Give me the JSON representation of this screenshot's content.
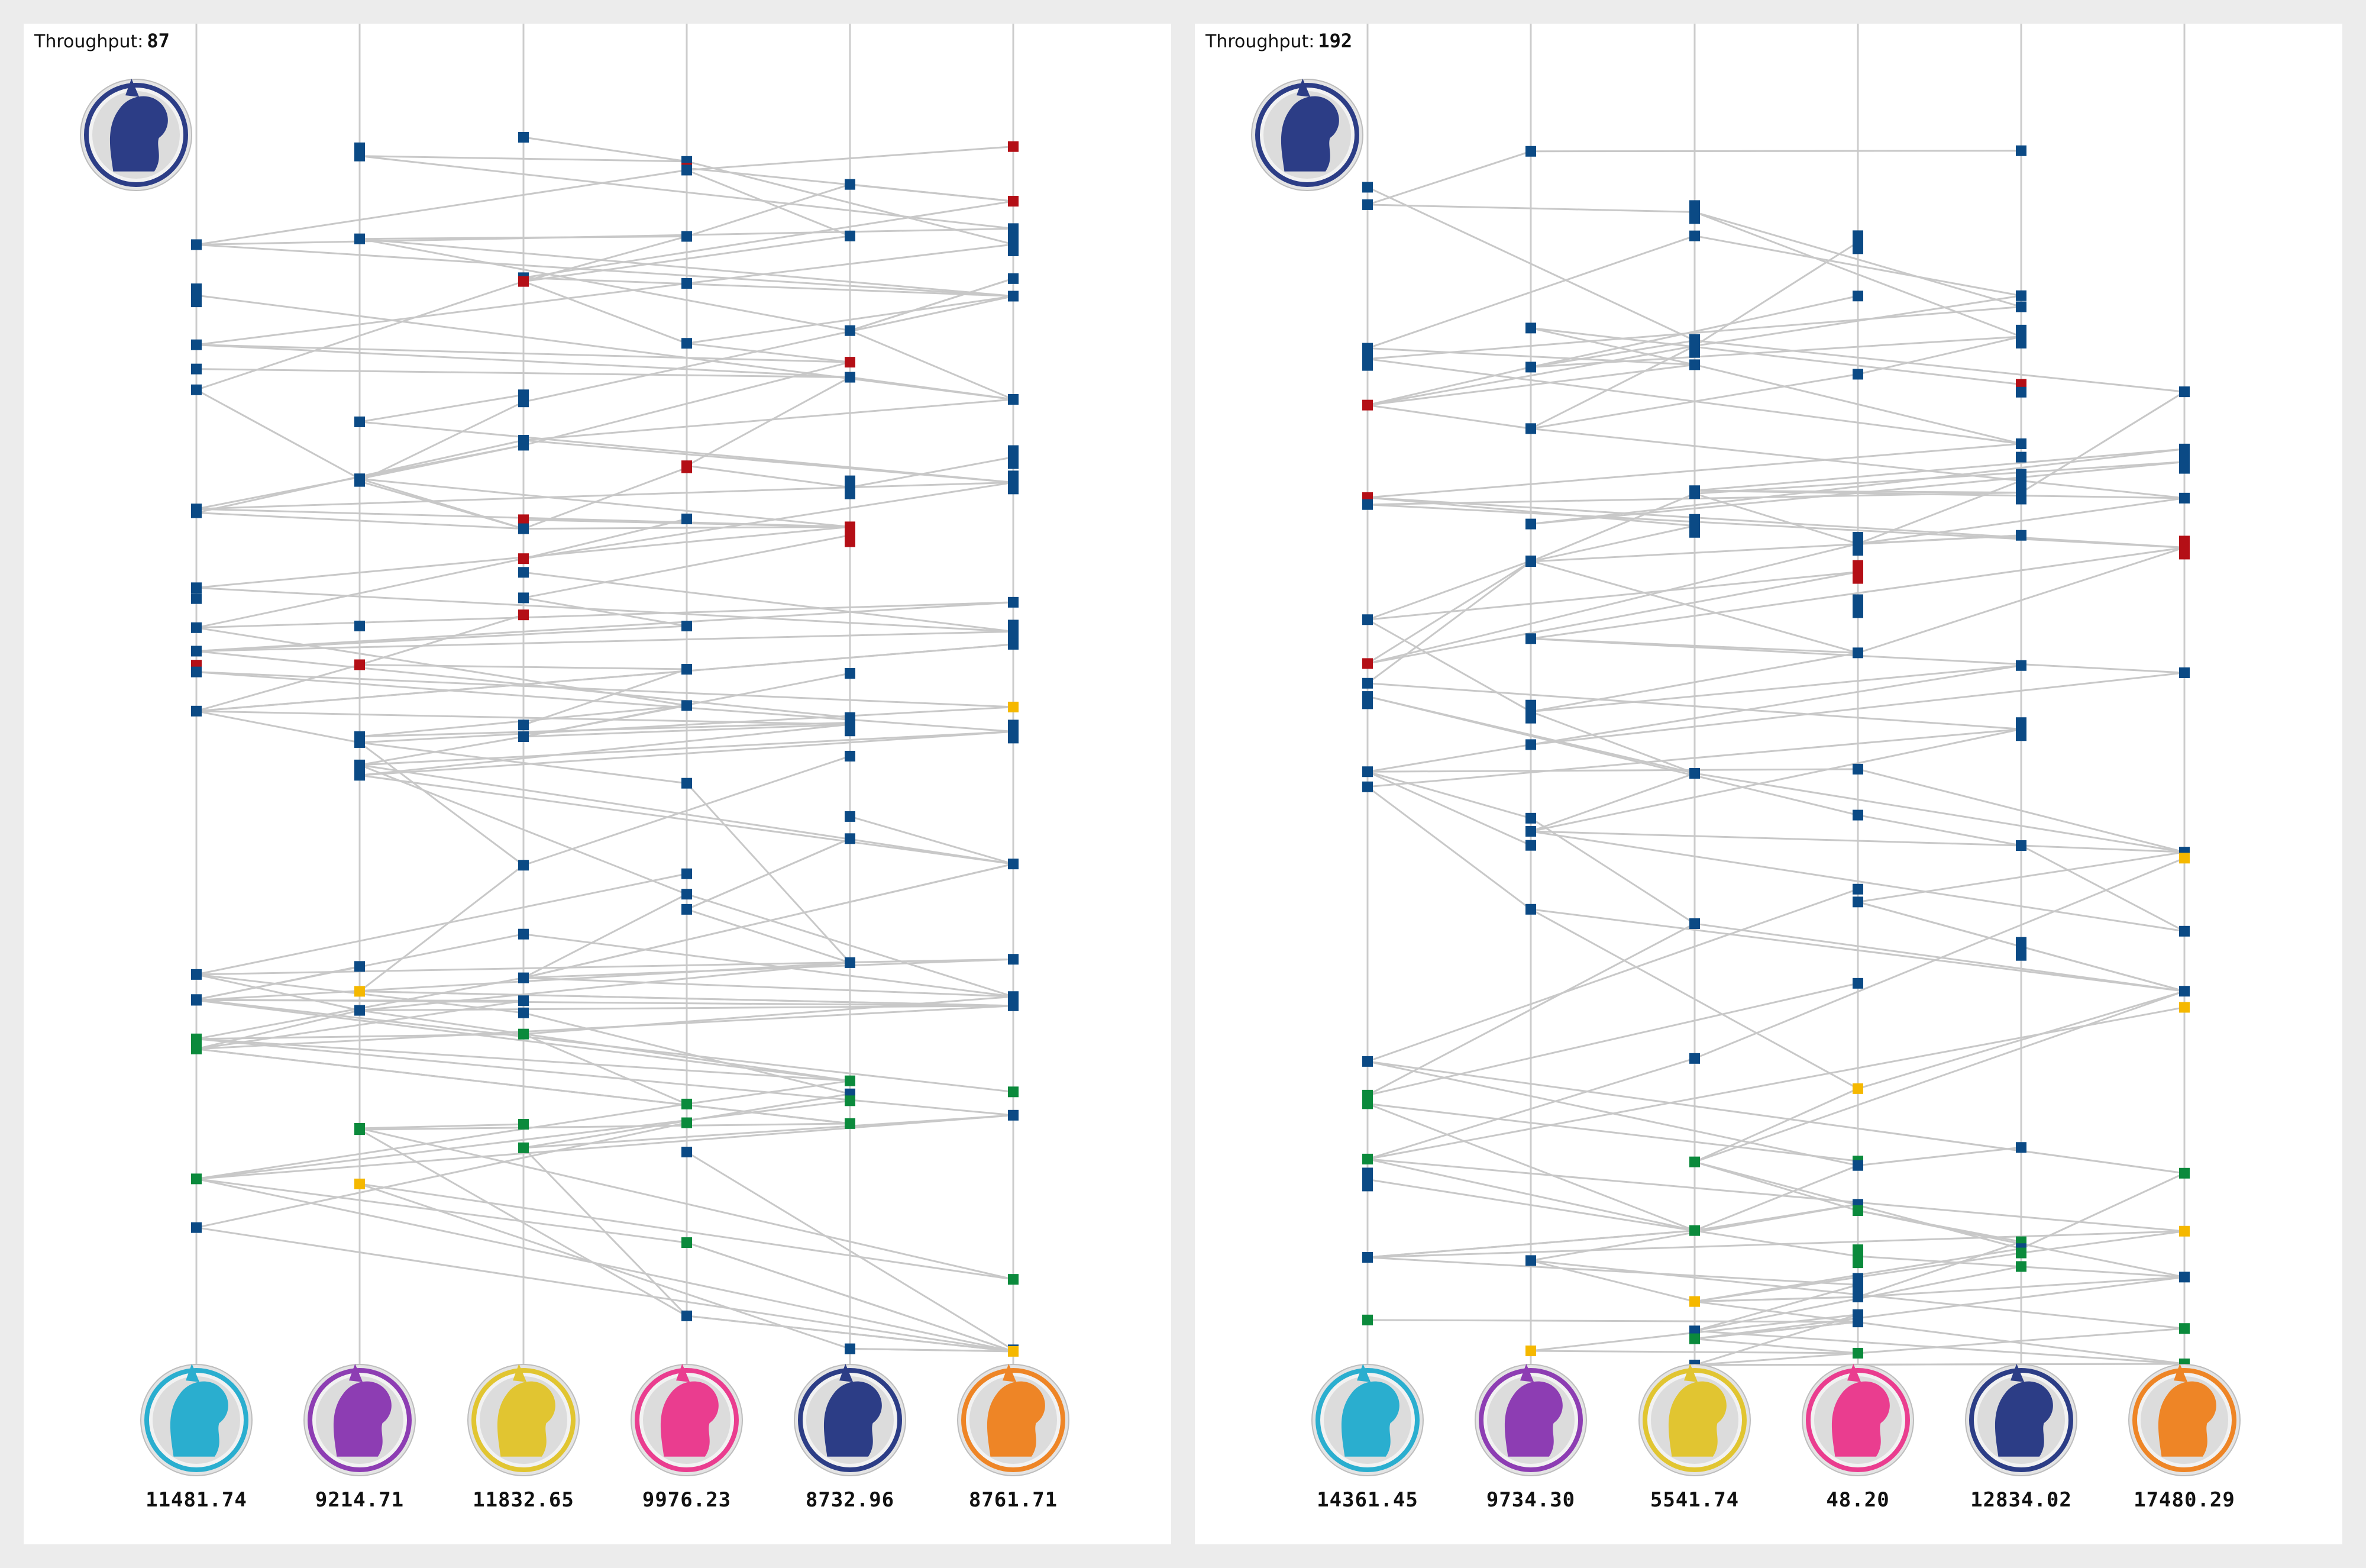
{
  "colors": {
    "line": "#c8c8c8",
    "lane": "#cccccc",
    "node_blue": "#0b4a85",
    "node_red": "#b40f16",
    "node_yellow": "#f5b800",
    "node_green": "#0b8a3c",
    "avatar_lane_colors": [
      "#2aaecf",
      "#8d3db3",
      "#e1c531",
      "#ea3d8f",
      "#2c3d86",
      "#ee8526"
    ],
    "avatar_top_color": "#2c3d86"
  },
  "avatar_icons": [
    "pony-lightblue-icon",
    "pony-purple-icon",
    "pony-yellow-icon",
    "pony-pink-icon",
    "pony-navy-icon",
    "pony-orange-icon"
  ],
  "top_avatar_icon": "pony-navy-icon",
  "panels": [
    {
      "throughput_label": "Throughput:",
      "throughput_value": "87",
      "lane_values": [
        "11481.74",
        "9214.71",
        "11832.65",
        "9976.23",
        "8732.96",
        "8761.71"
      ]
    },
    {
      "throughput_label": "Throughput:",
      "throughput_value": "192",
      "lane_values": [
        "14361.45",
        "9734.30",
        "5541.74",
        "48.20",
        "12834.02",
        "17480.29"
      ]
    }
  ]
}
